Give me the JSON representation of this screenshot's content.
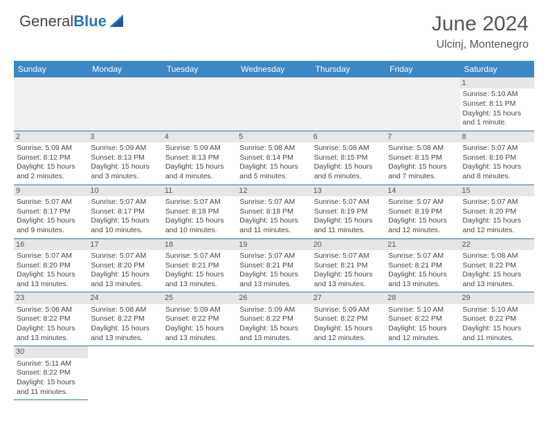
{
  "brand": {
    "part1": "General",
    "part2": "Blue"
  },
  "title": {
    "month": "June 2024",
    "location": "Ulcinj, Montenegro"
  },
  "colors": {
    "header_bg": "#3d87c7",
    "border": "#2e6fa8",
    "daynum_bg": "#e6e6e6",
    "blank_bg": "#f0f0f0",
    "text": "#444444"
  },
  "weekdays": [
    "Sunday",
    "Monday",
    "Tuesday",
    "Wednesday",
    "Thursday",
    "Friday",
    "Saturday"
  ],
  "weeks": [
    [
      {
        "blank": true
      },
      {
        "blank": true
      },
      {
        "blank": true
      },
      {
        "blank": true
      },
      {
        "blank": true
      },
      {
        "blank": true
      },
      {
        "day": "1",
        "sunrise": "Sunrise: 5:10 AM",
        "sunset": "Sunset: 8:11 PM",
        "daylight1": "Daylight: 15 hours",
        "daylight2": "and 1 minute."
      }
    ],
    [
      {
        "day": "2",
        "sunrise": "Sunrise: 5:09 AM",
        "sunset": "Sunset: 8:12 PM",
        "daylight1": "Daylight: 15 hours",
        "daylight2": "and 2 minutes."
      },
      {
        "day": "3",
        "sunrise": "Sunrise: 5:09 AM",
        "sunset": "Sunset: 8:13 PM",
        "daylight1": "Daylight: 15 hours",
        "daylight2": "and 3 minutes."
      },
      {
        "day": "4",
        "sunrise": "Sunrise: 5:09 AM",
        "sunset": "Sunset: 8:13 PM",
        "daylight1": "Daylight: 15 hours",
        "daylight2": "and 4 minutes."
      },
      {
        "day": "5",
        "sunrise": "Sunrise: 5:08 AM",
        "sunset": "Sunset: 8:14 PM",
        "daylight1": "Daylight: 15 hours",
        "daylight2": "and 5 minutes."
      },
      {
        "day": "6",
        "sunrise": "Sunrise: 5:08 AM",
        "sunset": "Sunset: 8:15 PM",
        "daylight1": "Daylight: 15 hours",
        "daylight2": "and 6 minutes."
      },
      {
        "day": "7",
        "sunrise": "Sunrise: 5:08 AM",
        "sunset": "Sunset: 8:15 PM",
        "daylight1": "Daylight: 15 hours",
        "daylight2": "and 7 minutes."
      },
      {
        "day": "8",
        "sunrise": "Sunrise: 5:07 AM",
        "sunset": "Sunset: 8:16 PM",
        "daylight1": "Daylight: 15 hours",
        "daylight2": "and 8 minutes."
      }
    ],
    [
      {
        "day": "9",
        "sunrise": "Sunrise: 5:07 AM",
        "sunset": "Sunset: 8:17 PM",
        "daylight1": "Daylight: 15 hours",
        "daylight2": "and 9 minutes."
      },
      {
        "day": "10",
        "sunrise": "Sunrise: 5:07 AM",
        "sunset": "Sunset: 8:17 PM",
        "daylight1": "Daylight: 15 hours",
        "daylight2": "and 10 minutes."
      },
      {
        "day": "11",
        "sunrise": "Sunrise: 5:07 AM",
        "sunset": "Sunset: 8:18 PM",
        "daylight1": "Daylight: 15 hours",
        "daylight2": "and 10 minutes."
      },
      {
        "day": "12",
        "sunrise": "Sunrise: 5:07 AM",
        "sunset": "Sunset: 8:18 PM",
        "daylight1": "Daylight: 15 hours",
        "daylight2": "and 11 minutes."
      },
      {
        "day": "13",
        "sunrise": "Sunrise: 5:07 AM",
        "sunset": "Sunset: 8:19 PM",
        "daylight1": "Daylight: 15 hours",
        "daylight2": "and 11 minutes."
      },
      {
        "day": "14",
        "sunrise": "Sunrise: 5:07 AM",
        "sunset": "Sunset: 8:19 PM",
        "daylight1": "Daylight: 15 hours",
        "daylight2": "and 12 minutes."
      },
      {
        "day": "15",
        "sunrise": "Sunrise: 5:07 AM",
        "sunset": "Sunset: 8:20 PM",
        "daylight1": "Daylight: 15 hours",
        "daylight2": "and 12 minutes."
      }
    ],
    [
      {
        "day": "16",
        "sunrise": "Sunrise: 5:07 AM",
        "sunset": "Sunset: 8:20 PM",
        "daylight1": "Daylight: 15 hours",
        "daylight2": "and 13 minutes."
      },
      {
        "day": "17",
        "sunrise": "Sunrise: 5:07 AM",
        "sunset": "Sunset: 8:20 PM",
        "daylight1": "Daylight: 15 hours",
        "daylight2": "and 13 minutes."
      },
      {
        "day": "18",
        "sunrise": "Sunrise: 5:07 AM",
        "sunset": "Sunset: 8:21 PM",
        "daylight1": "Daylight: 15 hours",
        "daylight2": "and 13 minutes."
      },
      {
        "day": "19",
        "sunrise": "Sunrise: 5:07 AM",
        "sunset": "Sunset: 8:21 PM",
        "daylight1": "Daylight: 15 hours",
        "daylight2": "and 13 minutes."
      },
      {
        "day": "20",
        "sunrise": "Sunrise: 5:07 AM",
        "sunset": "Sunset: 8:21 PM",
        "daylight1": "Daylight: 15 hours",
        "daylight2": "and 13 minutes."
      },
      {
        "day": "21",
        "sunrise": "Sunrise: 5:07 AM",
        "sunset": "Sunset: 8:21 PM",
        "daylight1": "Daylight: 15 hours",
        "daylight2": "and 13 minutes."
      },
      {
        "day": "22",
        "sunrise": "Sunrise: 5:08 AM",
        "sunset": "Sunset: 8:22 PM",
        "daylight1": "Daylight: 15 hours",
        "daylight2": "and 13 minutes."
      }
    ],
    [
      {
        "day": "23",
        "sunrise": "Sunrise: 5:08 AM",
        "sunset": "Sunset: 8:22 PM",
        "daylight1": "Daylight: 15 hours",
        "daylight2": "and 13 minutes."
      },
      {
        "day": "24",
        "sunrise": "Sunrise: 5:08 AM",
        "sunset": "Sunset: 8:22 PM",
        "daylight1": "Daylight: 15 hours",
        "daylight2": "and 13 minutes."
      },
      {
        "day": "25",
        "sunrise": "Sunrise: 5:09 AM",
        "sunset": "Sunset: 8:22 PM",
        "daylight1": "Daylight: 15 hours",
        "daylight2": "and 13 minutes."
      },
      {
        "day": "26",
        "sunrise": "Sunrise: 5:09 AM",
        "sunset": "Sunset: 8:22 PM",
        "daylight1": "Daylight: 15 hours",
        "daylight2": "and 13 minutes."
      },
      {
        "day": "27",
        "sunrise": "Sunrise: 5:09 AM",
        "sunset": "Sunset: 8:22 PM",
        "daylight1": "Daylight: 15 hours",
        "daylight2": "and 12 minutes."
      },
      {
        "day": "28",
        "sunrise": "Sunrise: 5:10 AM",
        "sunset": "Sunset: 8:22 PM",
        "daylight1": "Daylight: 15 hours",
        "daylight2": "and 12 minutes."
      },
      {
        "day": "29",
        "sunrise": "Sunrise: 5:10 AM",
        "sunset": "Sunset: 8:22 PM",
        "daylight1": "Daylight: 15 hours",
        "daylight2": "and 11 minutes."
      }
    ],
    [
      {
        "day": "30",
        "sunrise": "Sunrise: 5:11 AM",
        "sunset": "Sunset: 8:22 PM",
        "daylight1": "Daylight: 15 hours",
        "daylight2": "and 11 minutes."
      },
      {
        "blank": true,
        "noborder": true
      },
      {
        "blank": true,
        "noborder": true
      },
      {
        "blank": true,
        "noborder": true
      },
      {
        "blank": true,
        "noborder": true
      },
      {
        "blank": true,
        "noborder": true
      },
      {
        "blank": true,
        "noborder": true
      }
    ]
  ]
}
